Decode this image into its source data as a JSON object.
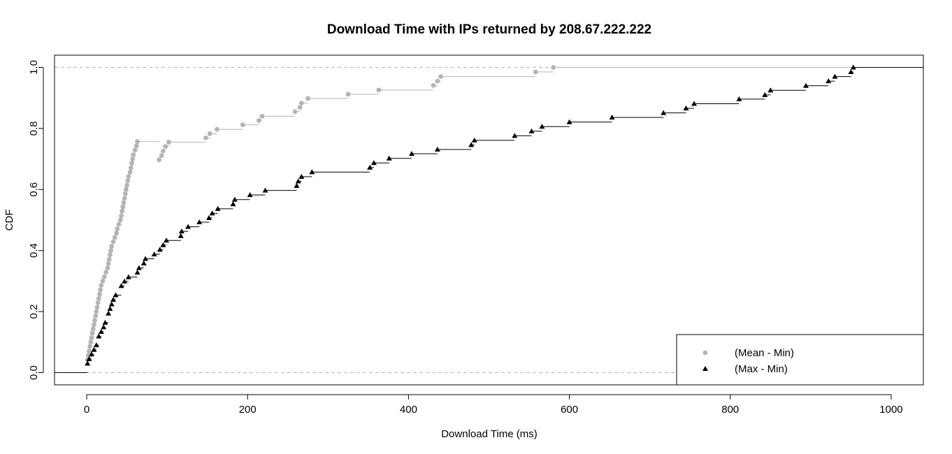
{
  "chart_data": {
    "type": "line",
    "title": "Download Time with IPs returned by 208.67.222.222",
    "xlabel": "Download Time (ms)",
    "ylabel": "CDF",
    "xlim": [
      -40,
      1040
    ],
    "ylim": [
      -0.04,
      1.04
    ],
    "xticks": [
      0,
      200,
      400,
      600,
      800,
      1000
    ],
    "yticks": [
      0.0,
      0.2,
      0.4,
      0.6,
      0.8,
      1.0
    ],
    "xtick_labels": [
      "0",
      "200",
      "400",
      "600",
      "800",
      "1000"
    ],
    "ytick_labels": [
      "0.0",
      "0.2",
      "0.4",
      "0.6",
      "0.8",
      "1.0"
    ],
    "reference_lines_y": [
      0.0,
      1.0
    ],
    "legend_position": "bottom-right",
    "series": [
      {
        "name": "(Mean - Min)",
        "marker": "circle",
        "color": "#b4b4b4",
        "x": [
          1,
          2,
          3,
          4,
          5,
          6,
          7,
          8,
          9,
          10,
          11,
          12,
          13,
          14,
          15,
          16,
          17,
          18,
          20,
          22,
          24,
          26,
          27,
          28,
          29,
          30,
          31,
          33,
          35,
          37,
          38,
          40,
          42,
          43,
          44,
          45,
          46,
          47,
          48,
          49,
          50,
          51,
          52,
          54,
          55,
          56,
          57,
          58,
          60,
          62,
          63,
          90,
          93,
          95,
          98,
          102,
          148,
          153,
          162,
          194,
          214,
          218,
          259,
          265,
          267,
          275,
          325,
          363,
          431,
          436,
          440,
          558,
          580
        ],
        "y": [
          0.043,
          0.057,
          0.071,
          0.086,
          0.1,
          0.114,
          0.129,
          0.143,
          0.157,
          0.171,
          0.186,
          0.2,
          0.214,
          0.229,
          0.243,
          0.257,
          0.271,
          0.286,
          0.3,
          0.314,
          0.329,
          0.343,
          0.357,
          0.371,
          0.386,
          0.4,
          0.414,
          0.429,
          0.443,
          0.457,
          0.471,
          0.486,
          0.5,
          0.514,
          0.529,
          0.543,
          0.557,
          0.571,
          0.586,
          0.6,
          0.614,
          0.629,
          0.643,
          0.657,
          0.671,
          0.686,
          0.7,
          0.714,
          0.729,
          0.743,
          0.757,
          0.697,
          0.711,
          0.726,
          0.741,
          0.755,
          0.769,
          0.783,
          0.797,
          0.812,
          0.826,
          0.84,
          0.855,
          0.869,
          0.883,
          0.898,
          0.912,
          0.926,
          0.941,
          0.955,
          0.97,
          0.985,
          1.0
        ]
      },
      {
        "name": "(Max - Min)",
        "marker": "triangle",
        "color": "#000000",
        "x": [
          1,
          3,
          6,
          9,
          12,
          15,
          18,
          21,
          23,
          27,
          29,
          31,
          33,
          36,
          43,
          47,
          52,
          63,
          65,
          71,
          73,
          84,
          91,
          95,
          99,
          117,
          118,
          126,
          140,
          152,
          156,
          163,
          182,
          184,
          203,
          222,
          261,
          263,
          267,
          280,
          352,
          357,
          376,
          404,
          436,
          478,
          482,
          532,
          553,
          566,
          600,
          653,
          717,
          745,
          755,
          811,
          843,
          850,
          894,
          922,
          930,
          950,
          953
        ],
        "y": [
          0.03,
          0.045,
          0.06,
          0.075,
          0.09,
          0.119,
          0.134,
          0.149,
          0.164,
          0.194,
          0.209,
          0.224,
          0.239,
          0.254,
          0.284,
          0.299,
          0.313,
          0.328,
          0.343,
          0.358,
          0.373,
          0.388,
          0.403,
          0.418,
          0.433,
          0.448,
          0.463,
          0.478,
          0.493,
          0.507,
          0.522,
          0.537,
          0.552,
          0.567,
          0.582,
          0.597,
          0.612,
          0.627,
          0.642,
          0.657,
          0.672,
          0.687,
          0.702,
          0.717,
          0.731,
          0.746,
          0.761,
          0.776,
          0.791,
          0.806,
          0.821,
          0.836,
          0.851,
          0.866,
          0.881,
          0.896,
          0.91,
          0.925,
          0.94,
          0.955,
          0.97,
          0.985,
          1.0
        ]
      }
    ]
  }
}
